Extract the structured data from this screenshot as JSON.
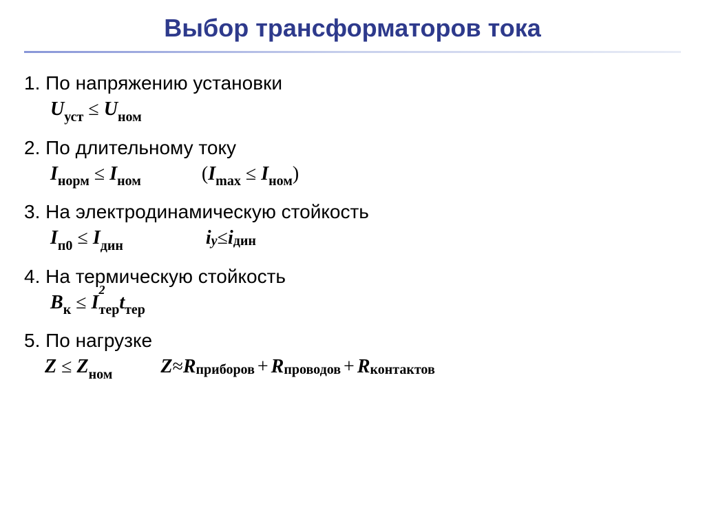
{
  "title": "Выбор трансформаторов тока",
  "items": [
    {
      "heading": "1. По напряжению установки",
      "formula_html": "<span class='formula-segment'><i>U</i><sub>уст</sub> <span class='le'>≤</span> <i>U</i><sub>ном</sub></span>"
    },
    {
      "heading": "2. По длительному току",
      "formula_html": "<span class='formula-segment'><i>I</i><sub>норм</sub> <span class='le'>≤</span> <i>I</i><sub>ном</sub></span> &nbsp;&nbsp;&nbsp;<span class='paren'>(</span><i>I</i><sub>max</sub> <span class='le'>≤</span> <i>I</i><sub>ном</sub><span class='paren'>)</span>"
    },
    {
      "heading": "3. На электродинамическую стойкость",
      "formula_html": "<span class='formula-segment-wide'><i>I</i><sub>п0</sub> <span class='le'>≤</span> <i>I</i><sub>дин</sub></span> <i>i</i><sub><i>y</i></sub> <span class='le'>≤</span> <i>i</i><sub>дин</sub>"
    },
    {
      "heading": "4. На термическую стойкость",
      "formula_html": "<i>B</i><sub>к</sub> <span class='le'>≤</span> <i>I</i><span style='position:relative'><sup style='position:absolute;left:0;top:-14px'>2</sup><sub>тер</sub></span><i>t</i><sub>тер</sub>"
    },
    {
      "heading": "5. По нагрузке",
      "formula_html": "<span class='item5-first'><i>Z</i> <span class='le'>≤</span> <i>Z</i><sub>ном</sub></span> <i>Z</i> <span class='approx'>≈</span> <i>R</i><sub>приборов</sub> <span class='plus'>+</span> <i>R</i><sub>проводов</sub> <span class='plus'>+</span> <i>R</i><sub>контактов</sub>"
    }
  ],
  "styles": {
    "title_color": "#2e3a8c",
    "title_fontsize": 36,
    "heading_fontsize": 28,
    "formula_fontsize": 28,
    "subscript_fontsize": 20,
    "background_color": "#ffffff",
    "text_color": "#000000",
    "underline_gradient_start": "#8896d8",
    "underline_gradient_end": "#e8ecf6"
  }
}
